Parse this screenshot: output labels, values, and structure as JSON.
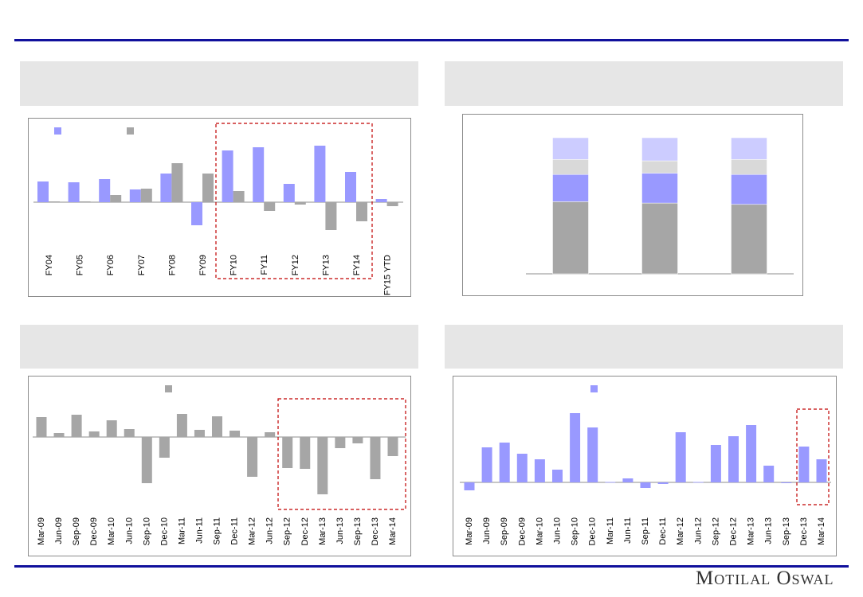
{
  "logo": "Motilal Oswal",
  "colors": {
    "blue": "#9999ff",
    "gray": "#a6a6a6",
    "lavender": "#ccccff",
    "lightgray": "#d9d9d9",
    "rule": "#10109c",
    "highlight": "#c00000"
  },
  "chart_data": [
    {
      "type": "bar",
      "title": "",
      "categories": [
        "FY04",
        "FY05",
        "FY06",
        "FY07",
        "FY08",
        "FY09",
        "FY10",
        "FY11",
        "FY12",
        "FY13",
        "FY14",
        "FY15 YTD"
      ],
      "series": [
        {
          "name": "",
          "color": "#9999ff",
          "values": [
            26,
            25,
            29,
            16,
            36,
            -29,
            65,
            69,
            23,
            71,
            38,
            4
          ]
        },
        {
          "name": "",
          "color": "#a6a6a6",
          "values": [
            1,
            1,
            9,
            17,
            49,
            36,
            14,
            -11,
            -3,
            -35,
            -24,
            -5
          ]
        }
      ],
      "units": "relative (no axis labels shown)",
      "highlight": [
        "FY10",
        "FY14"
      ],
      "legend": "top-left"
    },
    {
      "type": "bar",
      "stacked": true,
      "title": "",
      "categories": [
        "",
        "",
        ""
      ],
      "series": [
        {
          "name": "",
          "color": "#a6a6a6",
          "values": [
            53,
            52,
            51
          ]
        },
        {
          "name": "",
          "color": "#9999ff",
          "values": [
            20,
            22,
            22
          ]
        },
        {
          "name": "",
          "color": "#d9d9d9",
          "values": [
            11,
            9,
            11
          ]
        },
        {
          "name": "",
          "color": "#ccccff",
          "values": [
            16,
            17,
            16
          ]
        }
      ],
      "units": "percent of total (estimated)",
      "ylim": [
        0,
        100
      ]
    },
    {
      "type": "bar",
      "title": "",
      "categories": [
        "Mar-09",
        "Jun-09",
        "Sep-09",
        "Dec-09",
        "Mar-10",
        "Jun-10",
        "Sep-10",
        "Dec-10",
        "Mar-11",
        "Jun-11",
        "Sep-11",
        "Dec-11",
        "Mar-12",
        "Jun-12",
        "Sep-12",
        "Dec-12",
        "Mar-13",
        "Jun-13",
        "Sep-13",
        "Dec-13",
        "Mar-14"
      ],
      "series": [
        {
          "name": "",
          "color": "#a6a6a6",
          "values": [
            25,
            5,
            28,
            7,
            21,
            10,
            -58,
            -26,
            29,
            9,
            26,
            8,
            -50,
            6,
            -39,
            -40,
            -72,
            -14,
            -8,
            -53,
            -24
          ]
        }
      ],
      "units": "relative (no axis labels shown)",
      "highlight": [
        "Sep-12",
        "Mar-14"
      ],
      "legend": "top"
    },
    {
      "type": "bar",
      "title": "",
      "categories": [
        "Mar-09",
        "Jun-09",
        "Sep-09",
        "Dec-09",
        "Mar-10",
        "Jun-10",
        "Sep-10",
        "Dec-10",
        "Mar-11",
        "Jun-11",
        "Sep-11",
        "Dec-11",
        "Mar-12",
        "Jun-12",
        "Sep-12",
        "Dec-12",
        "Mar-13",
        "Jun-13",
        "Sep-13",
        "Dec-13",
        "Mar-14"
      ],
      "series": [
        {
          "name": "",
          "color": "#9999ff",
          "values": [
            -10,
            44,
            50,
            36,
            29,
            16,
            87,
            69,
            0.5,
            5,
            -7,
            -2,
            63,
            0.5,
            47,
            58,
            72,
            21,
            -1,
            45,
            29
          ]
        }
      ],
      "units": "relative (no axis labels shown)",
      "highlight": [
        "Dec-13",
        "Mar-14"
      ],
      "legend": "top"
    }
  ]
}
